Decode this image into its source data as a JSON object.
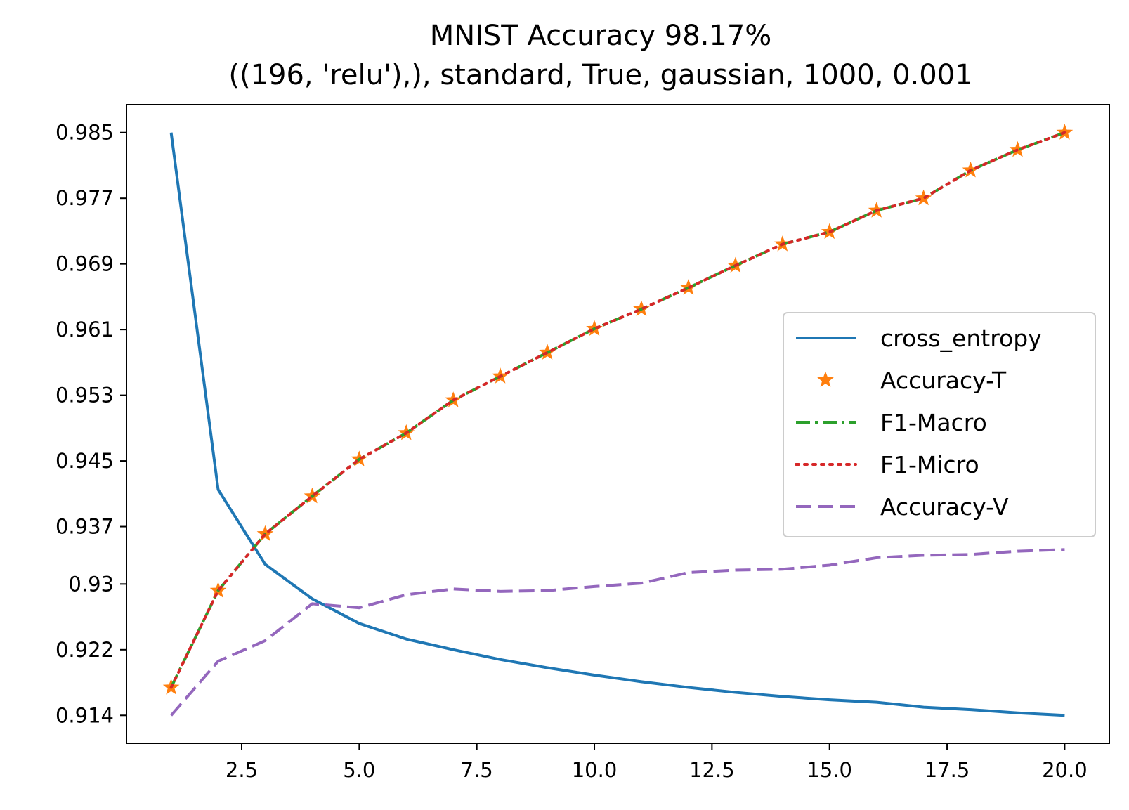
{
  "chart_data": {
    "type": "line",
    "title": "MNIST Accuracy 98.17%",
    "subtitle": "((196, 'relu'),), standard, True, gaussian, 1000, 0.001",
    "xlabel": "",
    "ylabel": "",
    "xlim": [
      0.05,
      20.95
    ],
    "ylim": [
      0.9106,
      0.9884
    ],
    "x_ticks": [
      2.5,
      5.0,
      7.5,
      10.0,
      12.5,
      15.0,
      17.5,
      20.0
    ],
    "x_tick_labels": [
      "2.5",
      "5.0",
      "7.5",
      "10.0",
      "12.5",
      "15.0",
      "17.5",
      "20.0"
    ],
    "y_ticks": [
      0.914,
      0.922,
      0.93,
      0.937,
      0.945,
      0.953,
      0.961,
      0.969,
      0.977,
      0.985
    ],
    "y_tick_labels": [
      "0.914",
      "0.922",
      "0.93",
      "0.937",
      "0.945",
      "0.953",
      "0.961",
      "0.969",
      "0.977",
      "0.985"
    ],
    "grid": false,
    "legend_position": "center-right",
    "x": [
      1,
      2,
      3,
      4,
      5,
      6,
      7,
      8,
      9,
      10,
      11,
      12,
      13,
      14,
      15,
      16,
      17,
      18,
      19,
      20
    ],
    "series": [
      {
        "name": "cross_entropy",
        "style": "solid",
        "marker": "none",
        "color": "#1f77b4",
        "values": [
          0.985,
          0.9415,
          0.9324,
          0.9282,
          0.9252,
          0.9233,
          0.922,
          0.9208,
          0.9198,
          0.9189,
          0.9181,
          0.9174,
          0.9168,
          0.9163,
          0.9159,
          0.9156,
          0.915,
          0.9147,
          0.9143,
          0.914
        ]
      },
      {
        "name": "Accuracy-T",
        "style": "none",
        "marker": "star",
        "color": "#ff7f0e",
        "values": [
          0.9174,
          0.9292,
          0.9361,
          0.9407,
          0.9452,
          0.9484,
          0.9524,
          0.9553,
          0.9582,
          0.9611,
          0.9635,
          0.9661,
          0.9688,
          0.9714,
          0.9729,
          0.9755,
          0.977,
          0.9804,
          0.9829,
          0.985
        ]
      },
      {
        "name": "F1-Macro",
        "style": "dashdot",
        "marker": "none",
        "color": "#2ca02c",
        "values": [
          0.9174,
          0.9292,
          0.9361,
          0.9407,
          0.9452,
          0.9484,
          0.9524,
          0.9553,
          0.9582,
          0.9611,
          0.9635,
          0.9661,
          0.9688,
          0.9714,
          0.9729,
          0.9755,
          0.977,
          0.9804,
          0.9829,
          0.985
        ]
      },
      {
        "name": "F1-Micro",
        "style": "dotted",
        "marker": "none",
        "color": "#d62728",
        "values": [
          0.9174,
          0.9292,
          0.9361,
          0.9407,
          0.9452,
          0.9484,
          0.9524,
          0.9553,
          0.9582,
          0.9611,
          0.9635,
          0.9661,
          0.9688,
          0.9714,
          0.9729,
          0.9755,
          0.977,
          0.9804,
          0.9829,
          0.985
        ]
      },
      {
        "name": "Accuracy-V",
        "style": "dashed",
        "marker": "none",
        "color": "#9467bd",
        "values": [
          0.914,
          0.9206,
          0.9231,
          0.9276,
          0.9271,
          0.9287,
          0.9294,
          0.9291,
          0.9292,
          0.9297,
          0.9301,
          0.9314,
          0.9317,
          0.9318,
          0.9323,
          0.9332,
          0.9335,
          0.9336,
          0.934,
          0.9342
        ]
      }
    ]
  }
}
